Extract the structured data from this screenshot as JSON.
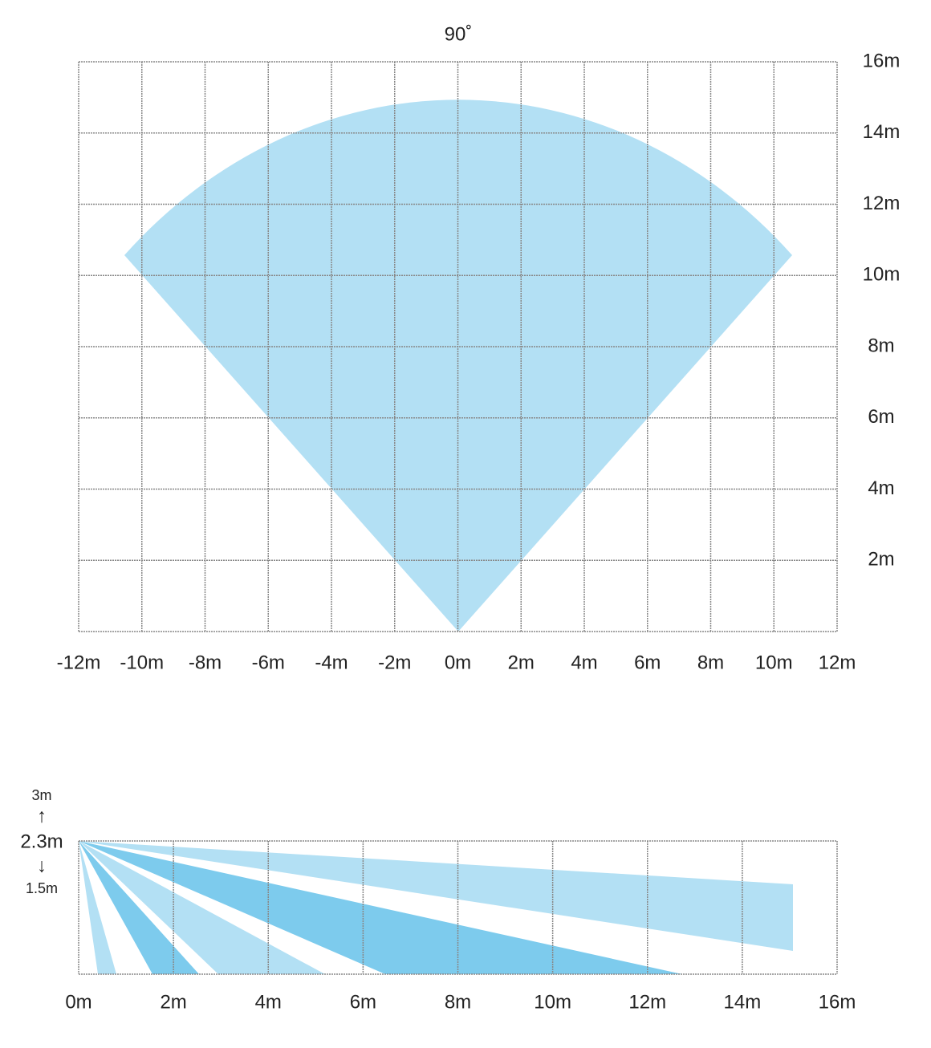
{
  "top_view": {
    "title": "90˚",
    "xticks": [
      {
        "value": -12,
        "label": "-12m"
      },
      {
        "value": -10,
        "label": "-10m"
      },
      {
        "value": -8,
        "label": "-8m"
      },
      {
        "value": -6,
        "label": "-6m"
      },
      {
        "value": -4,
        "label": "-4m"
      },
      {
        "value": -2,
        "label": "-2m"
      },
      {
        "value": 0,
        "label": "0m"
      },
      {
        "value": 2,
        "label": "2m"
      },
      {
        "value": 4,
        "label": "4m"
      },
      {
        "value": 6,
        "label": "6m"
      },
      {
        "value": 8,
        "label": "8m"
      },
      {
        "value": 10,
        "label": "10m"
      },
      {
        "value": 12,
        "label": "12m"
      }
    ],
    "yticks": [
      {
        "value": 2,
        "label": "2m"
      },
      {
        "value": 4,
        "label": "4m"
      },
      {
        "value": 6,
        "label": "6m"
      },
      {
        "value": 8,
        "label": "8m"
      },
      {
        "value": 10,
        "label": "10m"
      },
      {
        "value": 12,
        "label": "12m"
      },
      {
        "value": 14,
        "label": "14m"
      },
      {
        "value": 16,
        "label": "16m"
      }
    ]
  },
  "side_view": {
    "height_labels": [
      "3m",
      "↑",
      "2.3m",
      "↓",
      "1.5m"
    ],
    "xticks": [
      {
        "value": 0,
        "label": "0m"
      },
      {
        "value": 2,
        "label": "2m"
      },
      {
        "value": 4,
        "label": "4m"
      },
      {
        "value": 6,
        "label": "6m"
      },
      {
        "value": 8,
        "label": "8m"
      },
      {
        "value": 10,
        "label": "10m"
      },
      {
        "value": 12,
        "label": "12m"
      },
      {
        "value": 14,
        "label": "14m"
      },
      {
        "value": 16,
        "label": "16m"
      }
    ]
  }
}
